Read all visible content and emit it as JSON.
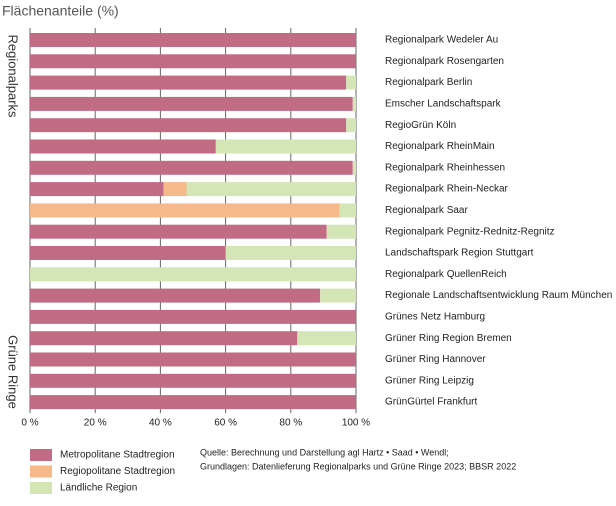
{
  "chart_data": {
    "type": "stacked-barh",
    "title": "Flächenanteile (%)",
    "group_labels": [
      "Regionalparks",
      "Grüne Ringe"
    ],
    "categories": [
      "Regionalpark Wedeler Au",
      "Regionalpark Rosengarten",
      "Regionalpark Berlin",
      "Emscher Landschaftspark",
      "RegioGrün Köln",
      "Regionalpark RheinMain",
      "Regionalpark Rheinhessen",
      "Regionalpark Rhein-Neckar",
      "Regionalpark Saar",
      "Regionalpark Pegnitz-Rednitz-Regnitz",
      "Landschaftspark Region Stuttgart",
      "Regionalpark QuellenReich",
      "Regionale Landschaftsentwicklung Raum München",
      "Grünes Netz Hamburg",
      "Grüner Ring Region Bremen",
      "Grüner Ring Hannover",
      "Grüner Ring Leipzig",
      "GrünGürtel Frankfurt"
    ],
    "series": [
      {
        "name": "Metropolitane Stadtregion",
        "color": "#c26b85",
        "values": [
          100,
          100,
          97,
          99,
          97,
          57,
          99,
          41,
          0,
          91,
          60,
          0,
          89,
          100,
          82,
          100,
          100,
          100
        ]
      },
      {
        "name": "Regiopolitane Stadtregion",
        "color": "#f5b98a",
        "values": [
          0,
          0,
          0,
          0,
          0,
          0,
          0,
          7,
          95,
          0,
          0,
          0,
          0,
          0,
          0,
          0,
          0,
          0
        ]
      },
      {
        "name": "Ländliche Region",
        "color": "#d4e6b5",
        "values": [
          0,
          0,
          3,
          1,
          3,
          43,
          1,
          52,
          5,
          9,
          40,
          100,
          11,
          0,
          18,
          0,
          0,
          0
        ]
      }
    ],
    "xlim": [
      0,
      100
    ],
    "xticks": [
      {
        "value": 0,
        "label": "0 %"
      },
      {
        "value": 20,
        "label": "20 %"
      },
      {
        "value": 40,
        "label": "40 %"
      },
      {
        "value": 60,
        "label": "60 %"
      },
      {
        "value": 80,
        "label": "80 %"
      },
      {
        "value": 100,
        "label": "100 %"
      }
    ],
    "grid": true,
    "source": [
      "Quelle: Berechnung und Darstellung agl Hartz • Saad • Wendl;",
      "Grundlagen: Datenlieferung Regionalparks und Grüne Ringe 2023; BBSR 2022"
    ]
  }
}
